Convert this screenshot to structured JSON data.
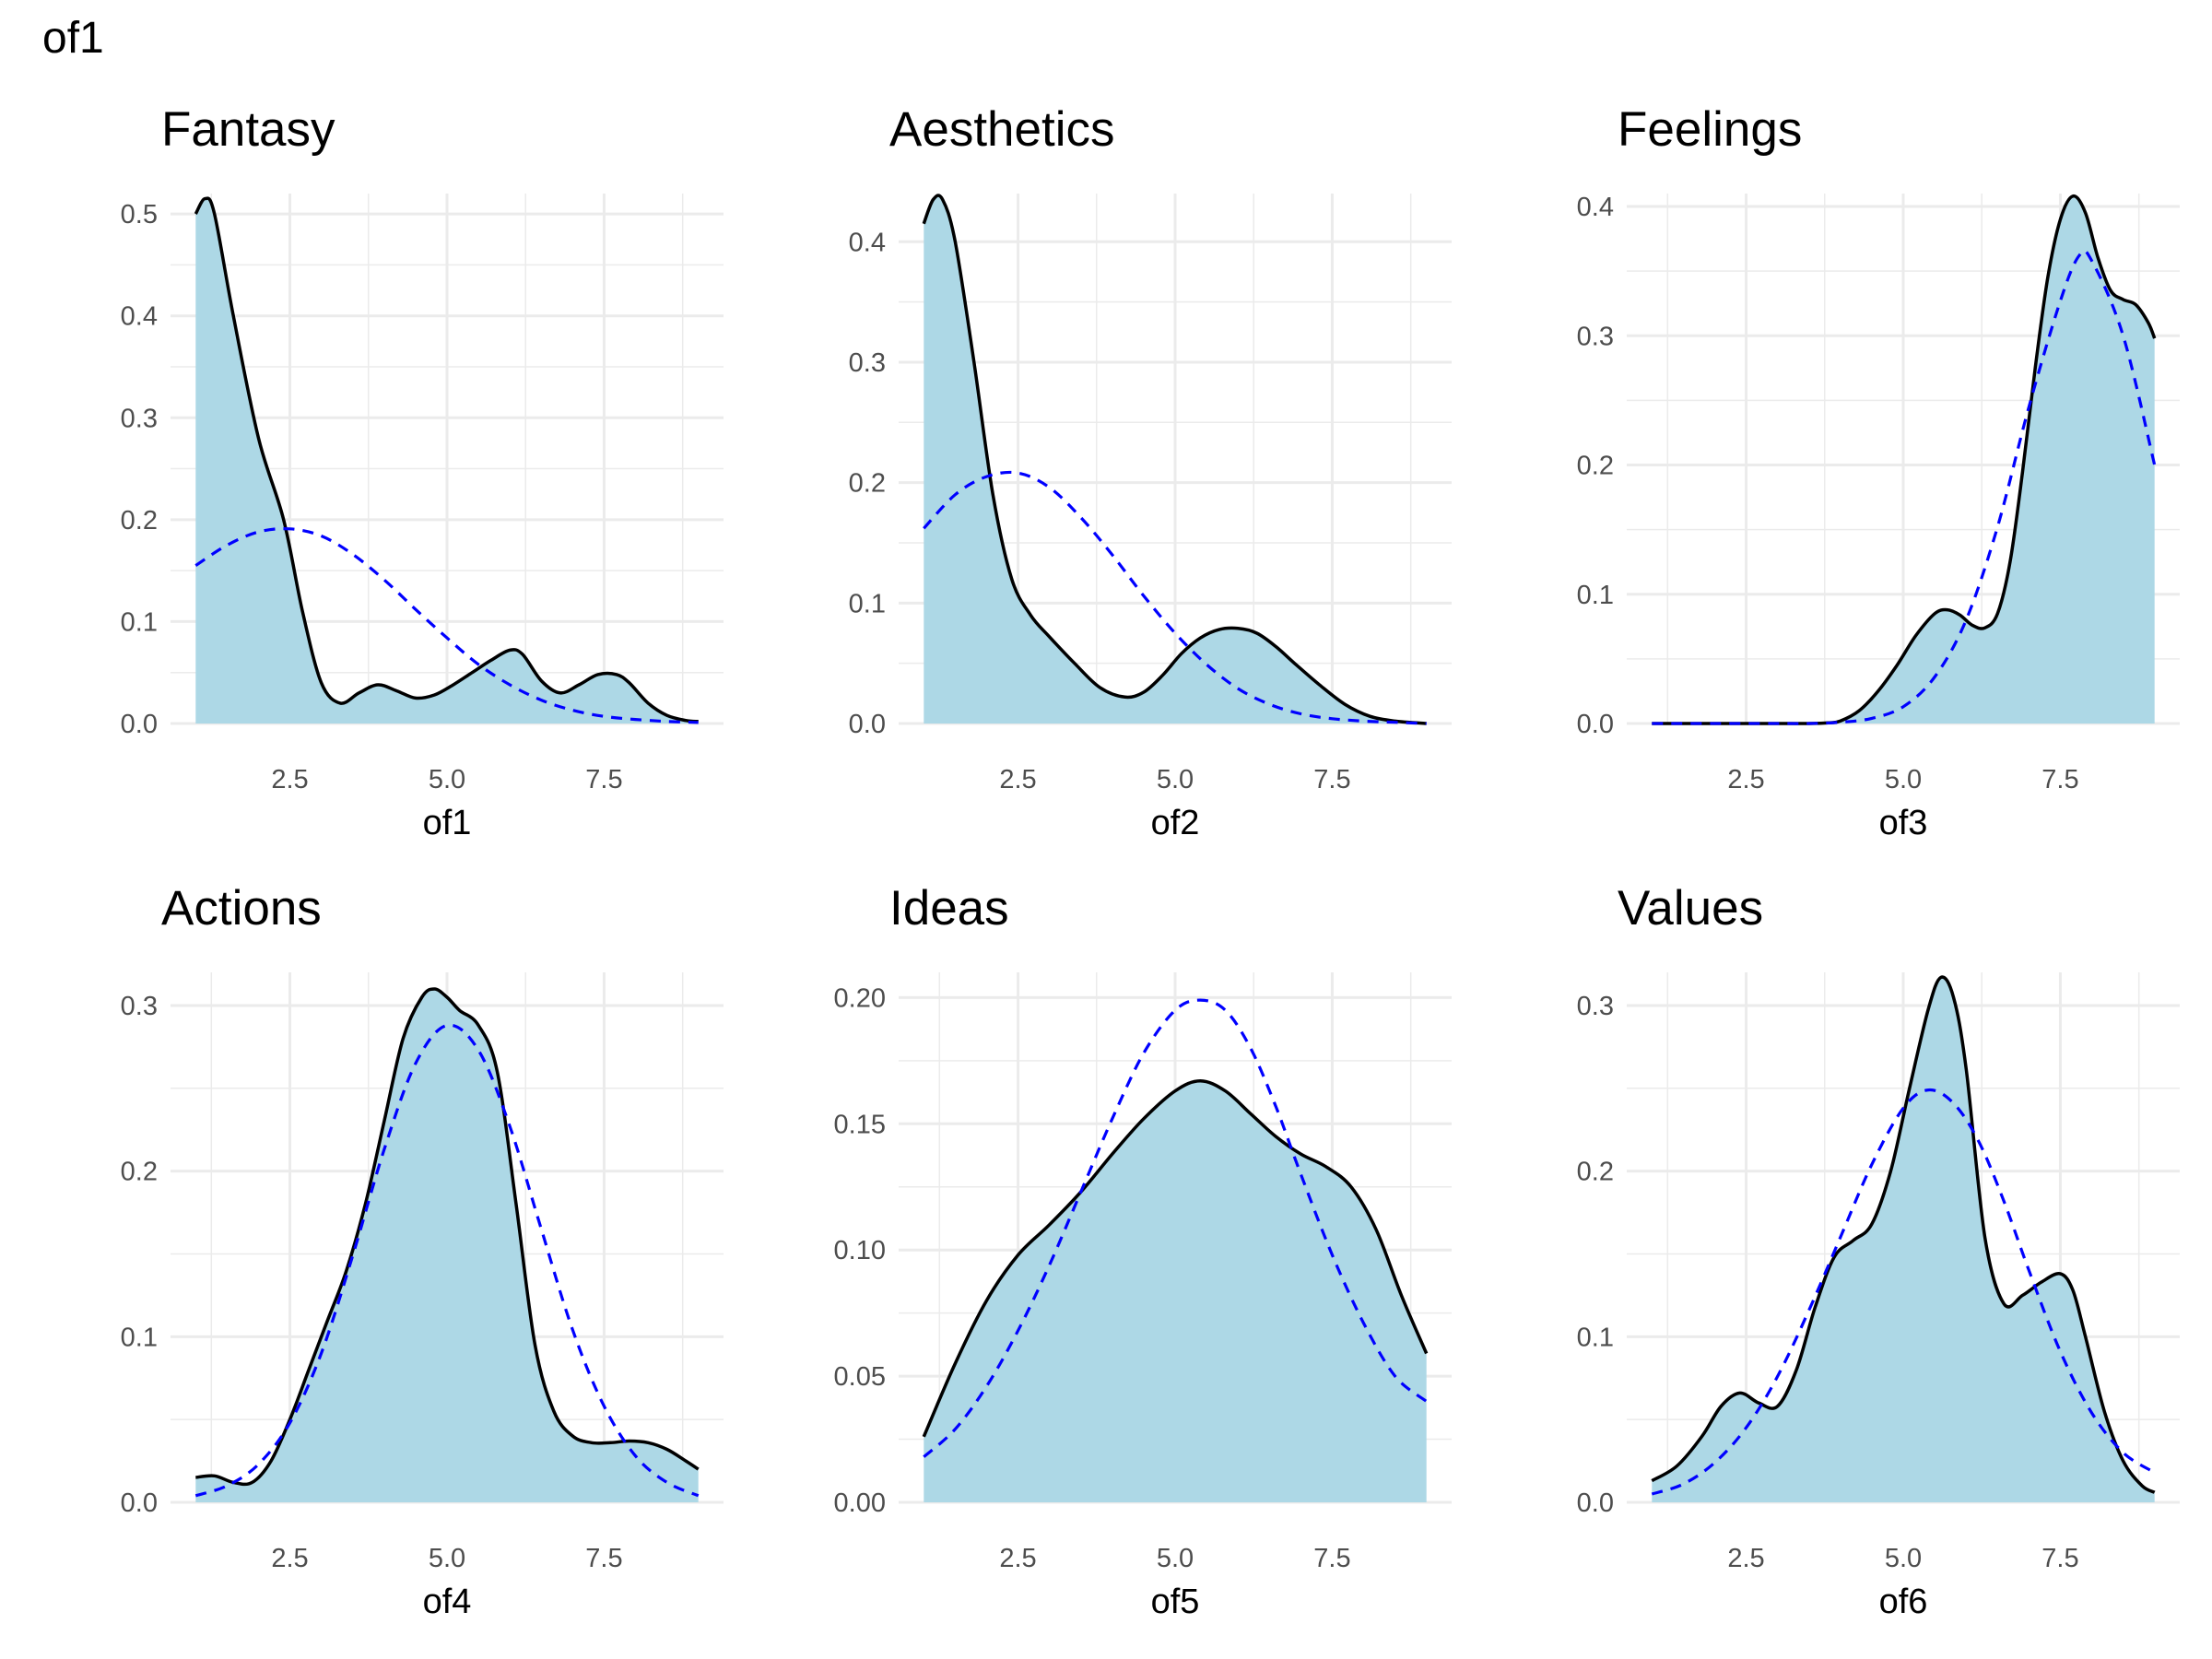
{
  "title": "of1",
  "chart_data": [
    {
      "type": "area",
      "title": "Fantasy",
      "xlabel": "of1",
      "ylabel": "",
      "xlim": [
        0.6,
        9.4
      ],
      "ylim": [
        0,
        0.52
      ],
      "xticks": [
        "2.5",
        "5.0",
        "7.5"
      ],
      "yticks": [
        "0.0",
        "0.1",
        "0.2",
        "0.3",
        "0.4",
        "0.5"
      ],
      "grid": true,
      "series": [
        {
          "style": "density-filled",
          "x": [
            1.0,
            1.15,
            1.3,
            1.6,
            2.0,
            2.4,
            2.7,
            3.0,
            3.3,
            3.6,
            3.9,
            4.2,
            4.5,
            4.8,
            5.1,
            5.4,
            5.7,
            6.0,
            6.2,
            6.5,
            6.8,
            7.1,
            7.4,
            7.7,
            7.9,
            8.2,
            8.5,
            8.8,
            9.0
          ],
          "y": [
            0.5,
            0.515,
            0.5,
            0.4,
            0.28,
            0.2,
            0.11,
            0.04,
            0.02,
            0.03,
            0.038,
            0.032,
            0.025,
            0.028,
            0.038,
            0.05,
            0.062,
            0.072,
            0.068,
            0.042,
            0.03,
            0.038,
            0.048,
            0.048,
            0.04,
            0.02,
            0.008,
            0.003,
            0.002
          ]
        },
        {
          "style": "normal-dashed",
          "x": [
            1.0,
            1.5,
            2.0,
            2.5,
            3.0,
            3.5,
            4.0,
            4.5,
            5.0,
            5.5,
            6.0,
            6.5,
            7.0,
            7.5,
            8.0,
            8.5,
            9.0
          ],
          "y": [
            0.155,
            0.175,
            0.188,
            0.191,
            0.184,
            0.166,
            0.141,
            0.112,
            0.084,
            0.058,
            0.038,
            0.023,
            0.013,
            0.007,
            0.004,
            0.002,
            0.001
          ]
        }
      ]
    },
    {
      "type": "area",
      "title": "Aesthetics",
      "xlabel": "of2",
      "ylabel": "",
      "xlim": [
        0.6,
        9.4
      ],
      "ylim": [
        0,
        0.44
      ],
      "xticks": [
        "2.5",
        "5.0",
        "7.5"
      ],
      "yticks": [
        "0.0",
        "0.1",
        "0.2",
        "0.3",
        "0.4"
      ],
      "grid": true,
      "series": [
        {
          "style": "density-filled",
          "x": [
            1.0,
            1.15,
            1.3,
            1.5,
            1.8,
            2.1,
            2.4,
            2.7,
            3.0,
            3.4,
            3.8,
            4.2,
            4.5,
            4.8,
            5.1,
            5.4,
            5.7,
            6.0,
            6.3,
            6.6,
            6.9,
            7.3,
            7.7,
            8.1,
            8.5,
            9.0
          ],
          "y": [
            0.415,
            0.435,
            0.435,
            0.4,
            0.3,
            0.19,
            0.12,
            0.09,
            0.072,
            0.05,
            0.03,
            0.022,
            0.026,
            0.04,
            0.058,
            0.071,
            0.078,
            0.079,
            0.075,
            0.064,
            0.05,
            0.032,
            0.016,
            0.006,
            0.002,
            0.0
          ]
        },
        {
          "style": "normal-dashed",
          "x": [
            1.0,
            1.5,
            2.0,
            2.5,
            3.0,
            3.5,
            4.0,
            4.5,
            5.0,
            5.5,
            6.0,
            6.5,
            7.0,
            7.5,
            8.0,
            8.5,
            9.0
          ],
          "y": [
            0.162,
            0.19,
            0.205,
            0.208,
            0.196,
            0.171,
            0.14,
            0.106,
            0.075,
            0.049,
            0.029,
            0.016,
            0.008,
            0.004,
            0.002,
            0.001,
            0.0
          ]
        }
      ]
    },
    {
      "type": "area",
      "title": "Feelings",
      "xlabel": "of3",
      "ylabel": "",
      "xlim": [
        0.6,
        9.4
      ],
      "ylim": [
        0,
        0.41
      ],
      "xticks": [
        "2.5",
        "5.0",
        "7.5"
      ],
      "yticks": [
        "0.0",
        "0.1",
        "0.2",
        "0.3",
        "0.4"
      ],
      "grid": true,
      "series": [
        {
          "style": "density-filled",
          "x": [
            1.0,
            2.0,
            3.0,
            3.5,
            3.8,
            4.0,
            4.3,
            4.6,
            4.9,
            5.2,
            5.5,
            5.7,
            5.9,
            6.1,
            6.3,
            6.5,
            6.7,
            6.9,
            7.1,
            7.3,
            7.5,
            7.7,
            7.9,
            8.1,
            8.3,
            8.5,
            8.7,
            8.9,
            9.0
          ],
          "y": [
            0.0,
            0.0,
            0.0,
            0.0,
            0.0005,
            0.002,
            0.01,
            0.025,
            0.045,
            0.068,
            0.085,
            0.088,
            0.084,
            0.076,
            0.074,
            0.085,
            0.125,
            0.195,
            0.275,
            0.345,
            0.39,
            0.408,
            0.395,
            0.36,
            0.335,
            0.328,
            0.324,
            0.31,
            0.298
          ]
        },
        {
          "style": "normal-dashed",
          "x": [
            1.0,
            2.0,
            3.0,
            3.5,
            4.0,
            4.5,
            5.0,
            5.5,
            6.0,
            6.5,
            7.0,
            7.5,
            7.8,
            8.0,
            8.5,
            9.0
          ],
          "y": [
            0.0,
            0.0,
            0.0,
            0.0,
            0.001,
            0.004,
            0.013,
            0.036,
            0.08,
            0.152,
            0.245,
            0.327,
            0.362,
            0.358,
            0.3,
            0.2
          ]
        }
      ]
    },
    {
      "type": "area",
      "title": "Actions",
      "xlabel": "of4",
      "ylabel": "",
      "xlim": [
        0.6,
        9.4
      ],
      "ylim": [
        0,
        0.32
      ],
      "xticks": [
        "2.5",
        "5.0",
        "7.5"
      ],
      "yticks": [
        "0.0",
        "0.1",
        "0.2",
        "0.3"
      ],
      "grid": true,
      "series": [
        {
          "style": "density-filled",
          "x": [
            1.0,
            1.3,
            1.6,
            1.9,
            2.2,
            2.5,
            2.8,
            3.1,
            3.4,
            3.7,
            4.0,
            4.3,
            4.6,
            4.8,
            5.0,
            5.2,
            5.5,
            5.8,
            6.1,
            6.4,
            6.7,
            7.0,
            7.3,
            7.6,
            7.9,
            8.2,
            8.5,
            8.8,
            9.0
          ],
          "y": [
            0.015,
            0.016,
            0.012,
            0.012,
            0.025,
            0.05,
            0.08,
            0.11,
            0.14,
            0.18,
            0.23,
            0.28,
            0.305,
            0.31,
            0.305,
            0.297,
            0.288,
            0.26,
            0.18,
            0.095,
            0.055,
            0.04,
            0.036,
            0.036,
            0.037,
            0.036,
            0.032,
            0.025,
            0.02
          ]
        },
        {
          "style": "normal-dashed",
          "x": [
            1.0,
            1.5,
            2.0,
            2.5,
            3.0,
            3.5,
            4.0,
            4.5,
            5.0,
            5.5,
            6.0,
            6.5,
            7.0,
            7.5,
            8.0,
            8.5,
            9.0
          ],
          "y": [
            0.004,
            0.01,
            0.023,
            0.048,
            0.09,
            0.149,
            0.213,
            0.265,
            0.288,
            0.273,
            0.227,
            0.165,
            0.104,
            0.058,
            0.028,
            0.012,
            0.004
          ]
        }
      ]
    },
    {
      "type": "area",
      "title": "Ideas",
      "xlabel": "of5",
      "ylabel": "",
      "xlim": [
        0.6,
        9.4
      ],
      "ylim": [
        0,
        0.21
      ],
      "xticks": [
        "2.5",
        "5.0",
        "7.5"
      ],
      "yticks": [
        "0.00",
        "0.05",
        "0.10",
        "0.15",
        "0.20"
      ],
      "grid": true,
      "series": [
        {
          "style": "density-filled",
          "x": [
            1.0,
            1.5,
            2.0,
            2.5,
            3.0,
            3.5,
            4.0,
            4.5,
            5.0,
            5.4,
            5.8,
            6.2,
            6.6,
            7.0,
            7.4,
            7.8,
            8.2,
            8.6,
            9.0
          ],
          "y": [
            0.026,
            0.055,
            0.08,
            0.098,
            0.11,
            0.123,
            0.138,
            0.152,
            0.163,
            0.167,
            0.163,
            0.154,
            0.145,
            0.138,
            0.133,
            0.125,
            0.108,
            0.082,
            0.059
          ]
        },
        {
          "style": "normal-dashed",
          "x": [
            1.0,
            1.5,
            2.0,
            2.5,
            3.0,
            3.5,
            4.0,
            4.5,
            5.0,
            5.4,
            5.8,
            6.2,
            6.6,
            7.0,
            7.5,
            8.0,
            8.5,
            9.0
          ],
          "y": [
            0.018,
            0.029,
            0.046,
            0.068,
            0.094,
            0.123,
            0.152,
            0.178,
            0.195,
            0.199,
            0.195,
            0.18,
            0.157,
            0.13,
            0.098,
            0.071,
            0.05,
            0.04
          ]
        }
      ]
    },
    {
      "type": "area",
      "title": "Values",
      "xlabel": "of6",
      "ylabel": "",
      "xlim": [
        0.6,
        9.4
      ],
      "ylim": [
        0,
        0.32
      ],
      "xticks": [
        "2.5",
        "5.0",
        "7.5"
      ],
      "yticks": [
        "0.0",
        "0.1",
        "0.2",
        "0.3"
      ],
      "grid": true,
      "series": [
        {
          "style": "density-filled",
          "x": [
            1.0,
            1.4,
            1.8,
            2.1,
            2.4,
            2.7,
            3.0,
            3.3,
            3.6,
            3.9,
            4.2,
            4.5,
            4.8,
            5.1,
            5.4,
            5.6,
            5.8,
            6.0,
            6.3,
            6.6,
            6.9,
            7.2,
            7.5,
            7.7,
            7.9,
            8.2,
            8.5,
            8.8,
            9.0
          ],
          "y": [
            0.013,
            0.022,
            0.04,
            0.058,
            0.066,
            0.06,
            0.058,
            0.08,
            0.118,
            0.148,
            0.158,
            0.168,
            0.2,
            0.25,
            0.298,
            0.317,
            0.305,
            0.262,
            0.16,
            0.12,
            0.125,
            0.133,
            0.138,
            0.128,
            0.1,
            0.055,
            0.025,
            0.01,
            0.006
          ]
        },
        {
          "style": "normal-dashed",
          "x": [
            1.0,
            1.5,
            2.0,
            2.5,
            3.0,
            3.5,
            4.0,
            4.5,
            5.0,
            5.4,
            5.8,
            6.2,
            6.6,
            7.0,
            7.5,
            8.0,
            8.5,
            9.0
          ],
          "y": [
            0.005,
            0.011,
            0.024,
            0.045,
            0.076,
            0.116,
            0.16,
            0.204,
            0.238,
            0.249,
            0.241,
            0.218,
            0.182,
            0.14,
            0.091,
            0.054,
            0.03,
            0.018
          ]
        }
      ]
    }
  ],
  "colors": {
    "fill": "#add8e6",
    "density_line": "#000000",
    "normal_line": "#0000ff",
    "grid": "#ebebeb",
    "tick_text": "#4d4d4d"
  }
}
